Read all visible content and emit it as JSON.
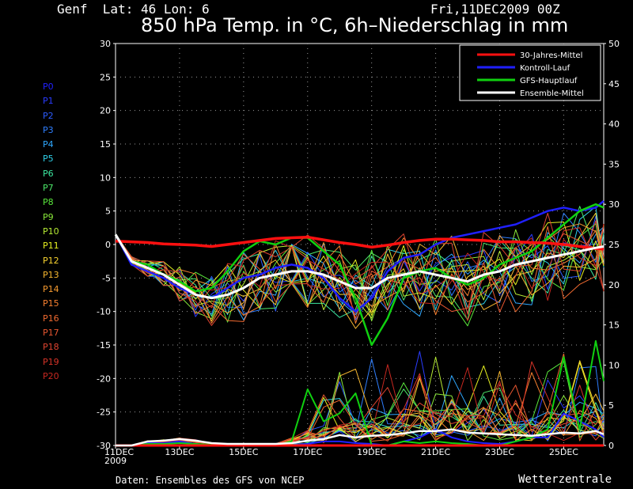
{
  "header": {
    "location": "Genf  Lat: 46 Lon: 6",
    "date": "Fri,11DEC2009 00Z"
  },
  "footer": {
    "source": "Daten: Ensembles des GFS von NCEP",
    "brand": "Wetterzentrale"
  },
  "members": [
    {
      "label": "P0",
      "color": "#2020ff"
    },
    {
      "label": "P1",
      "color": "#2a3cff"
    },
    {
      "label": "P2",
      "color": "#2c5cff"
    },
    {
      "label": "P3",
      "color": "#2f7fff"
    },
    {
      "label": "P4",
      "color": "#2fa8ff"
    },
    {
      "label": "P5",
      "color": "#2fd0e8"
    },
    {
      "label": "P6",
      "color": "#3ce8a0"
    },
    {
      "label": "P7",
      "color": "#4ce86a"
    },
    {
      "label": "P8",
      "color": "#5ae83c"
    },
    {
      "label": "P9",
      "color": "#8ae83a"
    },
    {
      "label": "P10",
      "color": "#b8ee34"
    },
    {
      "label": "P11",
      "color": "#e6f020"
    },
    {
      "label": "P12",
      "color": "#f8d430"
    },
    {
      "label": "P13",
      "color": "#f8b830"
    },
    {
      "label": "P14",
      "color": "#f89c30"
    },
    {
      "label": "P15",
      "color": "#f88030"
    },
    {
      "label": "P16",
      "color": "#f06a30"
    },
    {
      "label": "P17",
      "color": "#e85630"
    },
    {
      "label": "P18",
      "color": "#e04430"
    },
    {
      "label": "P19",
      "color": "#d83428"
    },
    {
      "label": "P20",
      "color": "#c82820"
    }
  ],
  "chart_data": {
    "type": "line",
    "title": "850 hPa Temp. in °C, 6h–Niederschlag in mm",
    "x_labels": [
      "11DEC\n2009",
      "13DEC",
      "15DEC",
      "17DEC",
      "19DEC",
      "21DEC",
      "23DEC",
      "25DEC"
    ],
    "x_days": [
      0,
      2,
      4,
      6,
      8,
      10,
      12,
      14
    ],
    "xlim_days": [
      0,
      15.25
    ],
    "y_left": {
      "lim": [
        -30,
        30
      ],
      "ticks": [
        30,
        25,
        20,
        15,
        10,
        5,
        0,
        -5,
        -10,
        -15,
        -20,
        -25,
        -30
      ]
    },
    "y_right": {
      "lim": [
        0,
        50
      ],
      "ticks": [
        50,
        45,
        40,
        35,
        30,
        25,
        20,
        15,
        10,
        5,
        0
      ]
    },
    "grid": true,
    "legend_position": "top-right",
    "legend": [
      {
        "name": "30-Jahres-Mittel",
        "color": "#ff1010"
      },
      {
        "name": "Kontroll-Lauf",
        "color": "#2020ff"
      },
      {
        "name": "GFS-Hauptlauf",
        "color": "#10d010"
      },
      {
        "name": "Ensemble-Mittel",
        "color": "#ffffff"
      }
    ],
    "temperature": {
      "x_days": [
        0,
        0.5,
        1,
        1.5,
        2,
        2.5,
        3,
        3.5,
        4,
        4.5,
        5,
        5.5,
        6,
        6.5,
        7,
        7.5,
        8,
        8.5,
        9,
        9.5,
        10,
        10.5,
        11,
        11.5,
        12,
        12.5,
        13,
        13.5,
        14,
        14.5,
        15,
        15.25
      ],
      "climate_mean": [
        0.5,
        0.4,
        0.3,
        0.1,
        0,
        -0.1,
        -0.3,
        0,
        0.3,
        0.6,
        0.9,
        1.0,
        1.1,
        0.7,
        0.3,
        0,
        -0.4,
        -0.1,
        0.3,
        0.6,
        0.8,
        0.8,
        0.7,
        0.6,
        0.4,
        0.4,
        0.3,
        0.2,
        0,
        -0.3,
        -0.6,
        -0.7
      ],
      "control_run": [
        1.5,
        -3,
        -4,
        -5,
        -6.5,
        -7.5,
        -8,
        -6.5,
        -5,
        -4.5,
        -3.5,
        -3,
        -3.5,
        -5,
        -8,
        -10,
        -8,
        -4,
        -2,
        -1.5,
        0,
        1,
        1.5,
        2,
        2.5,
        3,
        4,
        5,
        5.5,
        5,
        5.5,
        6.5
      ],
      "gfs_main": [
        1.5,
        -2.5,
        -3,
        -4.5,
        -5.5,
        -7,
        -6.5,
        -4,
        -1,
        0.5,
        0,
        1,
        1,
        -1,
        -3,
        -8,
        -15,
        -11,
        -5,
        -4,
        -3.5,
        -5,
        -6,
        -5,
        -3,
        -2,
        -1,
        1,
        3,
        5,
        6,
        5.5
      ],
      "ensemble_mean": [
        1.5,
        -2.5,
        -3.5,
        -4.5,
        -6,
        -7.5,
        -8,
        -7.5,
        -6.5,
        -5,
        -4.5,
        -4,
        -4,
        -4.5,
        -5.5,
        -6.5,
        -6.5,
        -5,
        -4.5,
        -4,
        -4.5,
        -5,
        -5.5,
        -4.5,
        -4,
        -3,
        -2.5,
        -2,
        -1.5,
        -1,
        -0.5,
        -0.3
      ]
    },
    "precipitation_mm": {
      "x_days": [
        0,
        0.5,
        1,
        1.5,
        2,
        2.5,
        3,
        3.5,
        4,
        4.5,
        5,
        5.5,
        6,
        6.5,
        7,
        7.5,
        8,
        8.5,
        9,
        9.5,
        10,
        10.5,
        11,
        11.5,
        12,
        12.5,
        13,
        13.5,
        14,
        14.5,
        15,
        15.25
      ],
      "gfs_main": [
        0,
        0,
        0.2,
        0.2,
        0.3,
        0.2,
        0.1,
        0,
        0,
        0,
        0,
        0.5,
        7,
        3,
        4,
        6.5,
        0,
        0,
        0.5,
        0.3,
        0.5,
        0.3,
        0.2,
        0,
        0,
        0.5,
        1,
        2,
        11,
        2,
        13,
        8
      ],
      "ensemble_mean": [
        0,
        0,
        0.5,
        0.6,
        0.8,
        0.6,
        0.3,
        0.2,
        0.2,
        0.2,
        0.2,
        0.3,
        0.6,
        0.8,
        1.3,
        1.0,
        1.2,
        1.3,
        1.5,
        1.8,
        1.8,
        2.0,
        1.6,
        1.5,
        1.4,
        1.3,
        1.2,
        1.4,
        1.6,
        1.5,
        1.8,
        1.4
      ],
      "control_run": [
        0,
        0,
        0.3,
        0.3,
        0.5,
        0.2,
        0,
        0,
        0,
        0,
        0,
        0,
        0.2,
        0.5,
        0.5,
        0.3,
        0.2,
        0,
        0.5,
        1,
        2,
        1,
        0.5,
        0.3,
        0.2,
        0.5,
        1,
        1,
        4,
        3,
        2,
        1
      ],
      "climate_mean": [
        0,
        0,
        0,
        0,
        0,
        0,
        0,
        0,
        0,
        0,
        0,
        0,
        0,
        0,
        0,
        0,
        0,
        0,
        0,
        0,
        0,
        0,
        0,
        0,
        0,
        0,
        0,
        0,
        0,
        0,
        0,
        0
      ]
    }
  }
}
